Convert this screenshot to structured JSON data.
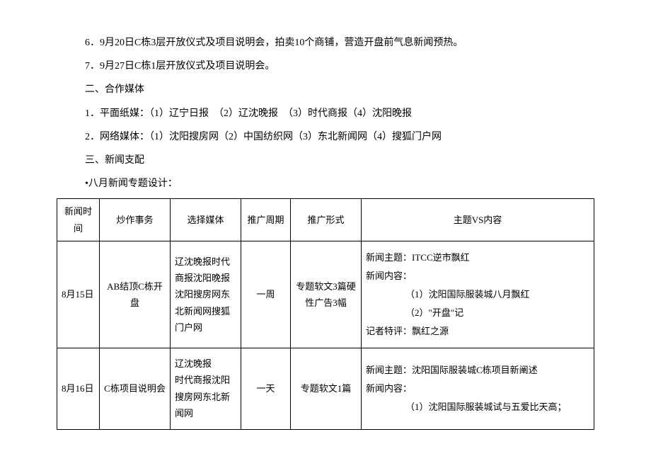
{
  "lines": [
    "6．9月20日C栋3层开放仪式及项目说明会，拍卖10个商铺，营造开盘前气息新闻预热。",
    "7．9月27日C栋1层开放仪式及项目说明会。",
    "二、合作媒体",
    "1．平面纸媒：（1）辽宁日报　（2）辽沈晚报　（3）时代商报（4）沈阳晚报",
    "2．网络媒体：（1）沈阳搜房网（2）中国纺织网（3）东北新闻网（4）搜狐门户网",
    "三、新闻支配",
    "•八月新闻专题设计："
  ],
  "table": {
    "headers": [
      "新闻时间",
      "炒作事务",
      "选择媒体",
      "推广周期",
      "推广形式",
      "主题VS内容"
    ],
    "rows": [
      {
        "time": "8月15日",
        "event": "AB结顶C栋开盘",
        "media": "辽沈晚报时代商报沈阳晚报沈阳搜房网东北新闻网搜狐门户网",
        "period": "一周",
        "form": "专题软文3篇硬性广告3幅",
        "theme_title": "新闻主题：ITCC逆市飘红",
        "theme_content_label": "新闻内容：",
        "theme_items": [
          "（1）沈阳国际服装城八月飘红",
          "（2）\"开盘\"记"
        ],
        "theme_footer": "记者特评：飘红之源"
      },
      {
        "time": "8月16日",
        "event": "C栋项目说明会",
        "media": "辽沈晚报\n时代商报沈阳搜房网东北新闻网",
        "period": "一天",
        "form": "专题软文1篇",
        "theme_title": "新闻主题：沈阳国际服装城C栋项目新阐述",
        "theme_content_label": "新闻内容：",
        "theme_items": [
          "（1）沈阳国际服装城试与五爱比天高；"
        ],
        "theme_footer": ""
      }
    ]
  }
}
